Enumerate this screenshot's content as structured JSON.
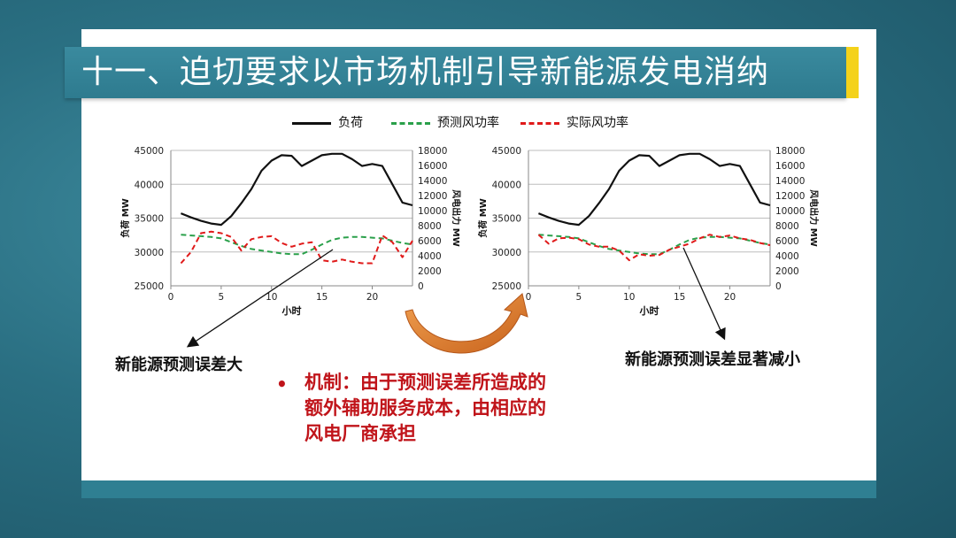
{
  "title": "十一、迫切要求以市场机制引导新能源发电消纳",
  "legend": [
    {
      "label": "负荷",
      "color": "#111111",
      "style": "solid"
    },
    {
      "label": "预测风功率",
      "color": "#2aa04a",
      "style": "dashed"
    },
    {
      "label": "实际风功率",
      "color": "#e01a1a",
      "style": "dashed"
    }
  ],
  "chart_data": [
    {
      "type": "line",
      "xlabel": "小时",
      "ylabel": "负荷 MW",
      "y2label": "风电出力 MW",
      "xlim": [
        0,
        24
      ],
      "ylim": [
        25000,
        45000
      ],
      "y2lim": [
        0,
        18000
      ],
      "x_ticks": [
        0,
        5,
        10,
        15,
        20
      ],
      "y_ticks": [
        25000,
        30000,
        35000,
        40000,
        45000
      ],
      "y2_ticks": [
        0,
        2000,
        4000,
        6000,
        8000,
        10000,
        12000,
        14000,
        16000,
        18000
      ],
      "grid": true,
      "series": [
        {
          "name": "负荷",
          "axis": "left",
          "color": "#111111",
          "dash": false,
          "x": [
            1,
            2,
            3,
            4,
            5,
            6,
            7,
            8,
            9,
            10,
            11,
            12,
            13,
            14,
            15,
            16,
            17,
            18,
            19,
            20,
            21,
            22,
            23,
            24
          ],
          "values": [
            35700,
            35100,
            34600,
            34200,
            34000,
            35300,
            37200,
            39300,
            42000,
            43500,
            44300,
            44200,
            42700,
            43500,
            44300,
            44500,
            44500,
            43700,
            42700,
            43000,
            42700,
            40000,
            37300,
            36900
          ]
        },
        {
          "name": "预测风功率",
          "axis": "right",
          "color": "#2aa04a",
          "dash": true,
          "x": [
            1,
            2,
            3,
            4,
            5,
            6,
            7,
            8,
            9,
            10,
            11,
            12,
            13,
            14,
            15,
            16,
            17,
            18,
            19,
            20,
            21,
            22,
            23,
            24
          ],
          "values": [
            6800,
            6700,
            6600,
            6500,
            6300,
            5800,
            5300,
            4900,
            4700,
            4500,
            4300,
            4200,
            4200,
            4800,
            5500,
            6100,
            6400,
            6500,
            6500,
            6400,
            6300,
            6000,
            5700,
            5500
          ]
        },
        {
          "name": "实际风功率",
          "axis": "right",
          "color": "#e01a1a",
          "dash": true,
          "x": [
            1,
            2,
            3,
            4,
            5,
            6,
            7,
            8,
            9,
            10,
            11,
            12,
            13,
            14,
            15,
            16,
            17,
            18,
            19,
            20,
            21,
            22,
            23,
            24
          ],
          "values": [
            3000,
            4500,
            7000,
            7200,
            7000,
            6500,
            4700,
            6200,
            6500,
            6600,
            5700,
            5200,
            5600,
            5800,
            3400,
            3200,
            3500,
            3200,
            3000,
            3000,
            6700,
            5800,
            3800,
            6000
          ]
        }
      ]
    },
    {
      "type": "line",
      "xlabel": "小时",
      "ylabel": "负荷 MW",
      "y2label": "风电出力 MW",
      "xlim": [
        0,
        24
      ],
      "ylim": [
        25000,
        45000
      ],
      "y2lim": [
        0,
        18000
      ],
      "x_ticks": [
        0,
        5,
        10,
        15,
        20
      ],
      "y_ticks": [
        25000,
        30000,
        35000,
        40000,
        45000
      ],
      "y2_ticks": [
        0,
        2000,
        4000,
        6000,
        8000,
        10000,
        12000,
        14000,
        16000,
        18000
      ],
      "grid": true,
      "series": [
        {
          "name": "负荷",
          "axis": "left",
          "color": "#111111",
          "dash": false,
          "x": [
            1,
            2,
            3,
            4,
            5,
            6,
            7,
            8,
            9,
            10,
            11,
            12,
            13,
            14,
            15,
            16,
            17,
            18,
            19,
            20,
            21,
            22,
            23,
            24
          ],
          "values": [
            35700,
            35100,
            34600,
            34200,
            34000,
            35300,
            37200,
            39300,
            42000,
            43500,
            44300,
            44200,
            42700,
            43500,
            44300,
            44500,
            44500,
            43700,
            42700,
            43000,
            42700,
            40000,
            37300,
            36900
          ]
        },
        {
          "name": "预测风功率",
          "axis": "right",
          "color": "#2aa04a",
          "dash": true,
          "x": [
            1,
            2,
            3,
            4,
            5,
            6,
            7,
            8,
            9,
            10,
            11,
            12,
            13,
            14,
            15,
            16,
            17,
            18,
            19,
            20,
            21,
            22,
            23,
            24
          ],
          "values": [
            6800,
            6700,
            6600,
            6500,
            6300,
            5800,
            5300,
            4900,
            4700,
            4500,
            4300,
            4200,
            4200,
            4800,
            5500,
            6100,
            6400,
            6500,
            6500,
            6400,
            6300,
            6000,
            5700,
            5500
          ]
        },
        {
          "name": "实际风功率",
          "axis": "right",
          "color": "#e01a1a",
          "dash": true,
          "x": [
            1,
            2,
            3,
            4,
            5,
            6,
            7,
            8,
            9,
            10,
            11,
            12,
            13,
            14,
            15,
            16,
            17,
            18,
            19,
            20,
            21,
            22,
            23,
            24
          ],
          "values": [
            6800,
            5600,
            6300,
            6400,
            6200,
            5500,
            5200,
            5200,
            4700,
            3400,
            4200,
            4000,
            4100,
            4800,
            5200,
            5600,
            6300,
            6800,
            6500,
            6700,
            6300,
            6100,
            5700,
            5400
          ]
        }
      ]
    }
  ],
  "annotations": {
    "left": "新能源预测误差大",
    "right": "新能源预测误差显著减小"
  },
  "bullet": {
    "lines": [
      "机制：由于预测误差所造成的",
      "额外辅助服务成本，由相应的",
      "风电厂商承担"
    ]
  }
}
